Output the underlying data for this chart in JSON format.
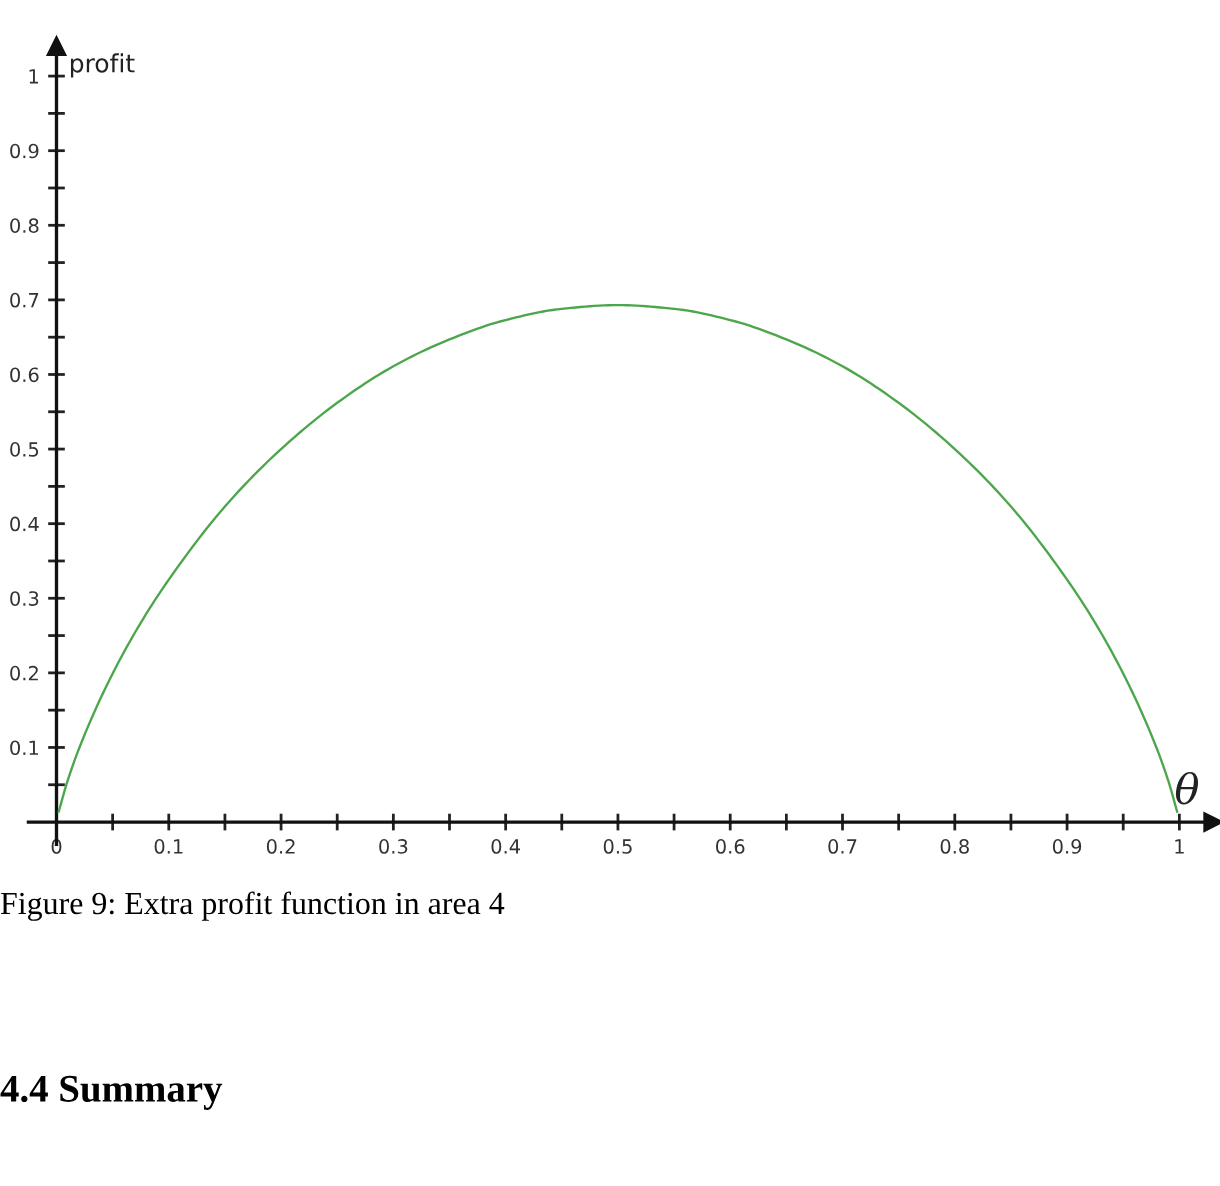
{
  "chart_data": {
    "type": "line",
    "xlabel": "θ",
    "ylabel": "profit",
    "annotations": [
      "Figure 9: Extra profit function in area 4",
      "4.4 Summary"
    ],
    "series": [
      {
        "color": "#4ca64c",
        "x": [
          0.002,
          0.01,
          0.025,
          0.05,
          0.075,
          0.1,
          0.15,
          0.2,
          0.25,
          0.3,
          0.35,
          0.4,
          0.45,
          0.5,
          0.55,
          0.6,
          0.65,
          0.7,
          0.75,
          0.8,
          0.85,
          0.9,
          0.925,
          0.95,
          0.975,
          0.99,
          0.998
        ],
        "values": [
          0.014,
          0.056,
          0.117,
          0.199,
          0.267,
          0.325,
          0.423,
          0.5,
          0.562,
          0.611,
          0.647,
          0.673,
          0.688,
          0.693,
          0.688,
          0.673,
          0.647,
          0.611,
          0.562,
          0.5,
          0.423,
          0.325,
          0.267,
          0.199,
          0.117,
          0.056,
          0.014
        ]
      }
    ],
    "xlim": [
      -0.025,
      1.03
    ],
    "ylim": [
      -0.03,
      1.04
    ],
    "xticks": [
      0,
      {
        "value": 0.05,
        "label": null
      },
      0.1,
      {
        "value": 0.15,
        "label": null
      },
      0.2,
      {
        "value": 0.25,
        "label": null
      },
      0.3,
      {
        "value": 0.35,
        "label": null
      },
      0.4,
      {
        "value": 0.45,
        "label": null
      },
      0.5,
      {
        "value": 0.55,
        "label": null
      },
      0.6,
      {
        "value": 0.65,
        "label": null
      },
      0.7,
      {
        "value": 0.75,
        "label": null
      },
      0.8,
      {
        "value": 0.85,
        "label": null
      },
      0.9,
      {
        "value": 0.95,
        "label": null
      },
      1
    ],
    "yticks": [
      {
        "value": 0.05,
        "label": null
      },
      0.1,
      {
        "value": 0.15,
        "label": null
      },
      0.2,
      {
        "value": 0.25,
        "label": null
      },
      0.3,
      {
        "value": 0.35,
        "label": null
      },
      0.4,
      {
        "value": 0.45,
        "label": null
      },
      0.5,
      {
        "value": 0.55,
        "label": null
      },
      0.6,
      {
        "value": 0.65,
        "label": null
      },
      0.7,
      {
        "value": 0.75,
        "label": null
      },
      0.8,
      {
        "value": 0.85,
        "label": null
      },
      0.9,
      {
        "value": 0.95,
        "label": null
      },
      1
    ],
    "marker": "none",
    "line_style": "solid",
    "grid": false,
    "legend": false
  }
}
